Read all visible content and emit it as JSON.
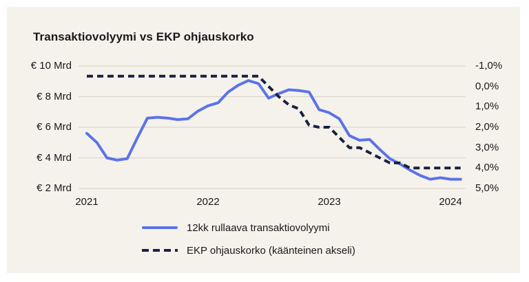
{
  "chart_data": {
    "type": "line",
    "title": "Transaktiovolyymi vs EKP ohjauskorko",
    "frequency": "monthly",
    "x_start": "2021-01",
    "x_end": "2024-02",
    "x_tick_labels": [
      "2021",
      "2022",
      "2023",
      "2024"
    ],
    "grid": "horizontal",
    "legend_position": "bottom",
    "left_axis": {
      "unit": "€ Mrd",
      "min": 2,
      "max": 10,
      "tick_labels": [
        "€ 10 Mrd",
        "€ 8 Mrd",
        "€ 6 Mrd",
        "€ 4 Mrd",
        "€ 2 Mrd"
      ]
    },
    "right_axis": {
      "unit": "%",
      "min": -1,
      "max": 5,
      "inverted": true,
      "tick_labels": [
        "-1,0%",
        "0,0%",
        "1,0%",
        "2,0%",
        "3,0%",
        "4,0%",
        "5,0%"
      ]
    },
    "series": [
      {
        "name": "12kk rullaava transaktiovolyymi",
        "style": "solid",
        "color": "#5b73e8",
        "axis": "left",
        "values": [
          5.6,
          5.0,
          4.0,
          3.85,
          3.95,
          5.3,
          6.6,
          6.65,
          6.6,
          6.5,
          6.55,
          7.05,
          7.4,
          7.6,
          8.3,
          8.75,
          9.05,
          8.85,
          7.9,
          8.2,
          8.45,
          8.4,
          8.3,
          7.15,
          6.95,
          6.55,
          5.45,
          5.15,
          5.2,
          4.55,
          3.95,
          3.6,
          3.2,
          2.85,
          2.6,
          2.7,
          2.6,
          2.6
        ]
      },
      {
        "name": "EKP ohjauskorko (käänteinen akseli)",
        "style": "dashed",
        "color": "#1b2040",
        "axis": "right",
        "values": [
          -0.5,
          -0.5,
          -0.5,
          -0.5,
          -0.5,
          -0.5,
          -0.5,
          -0.5,
          -0.5,
          -0.5,
          -0.5,
          -0.5,
          -0.5,
          -0.5,
          -0.5,
          -0.5,
          -0.5,
          -0.5,
          0.0,
          0.5,
          0.9,
          1.1,
          1.9,
          2.0,
          2.0,
          2.5,
          3.0,
          3.0,
          3.25,
          3.5,
          3.75,
          3.75,
          4.0,
          4.0,
          4.0,
          4.0,
          4.0,
          4.0
        ]
      }
    ],
    "colors": {
      "card_background": "#f5f2ec",
      "page_background": "#ffffff",
      "gridline": "#dbd7cd",
      "text": "#191919"
    }
  }
}
